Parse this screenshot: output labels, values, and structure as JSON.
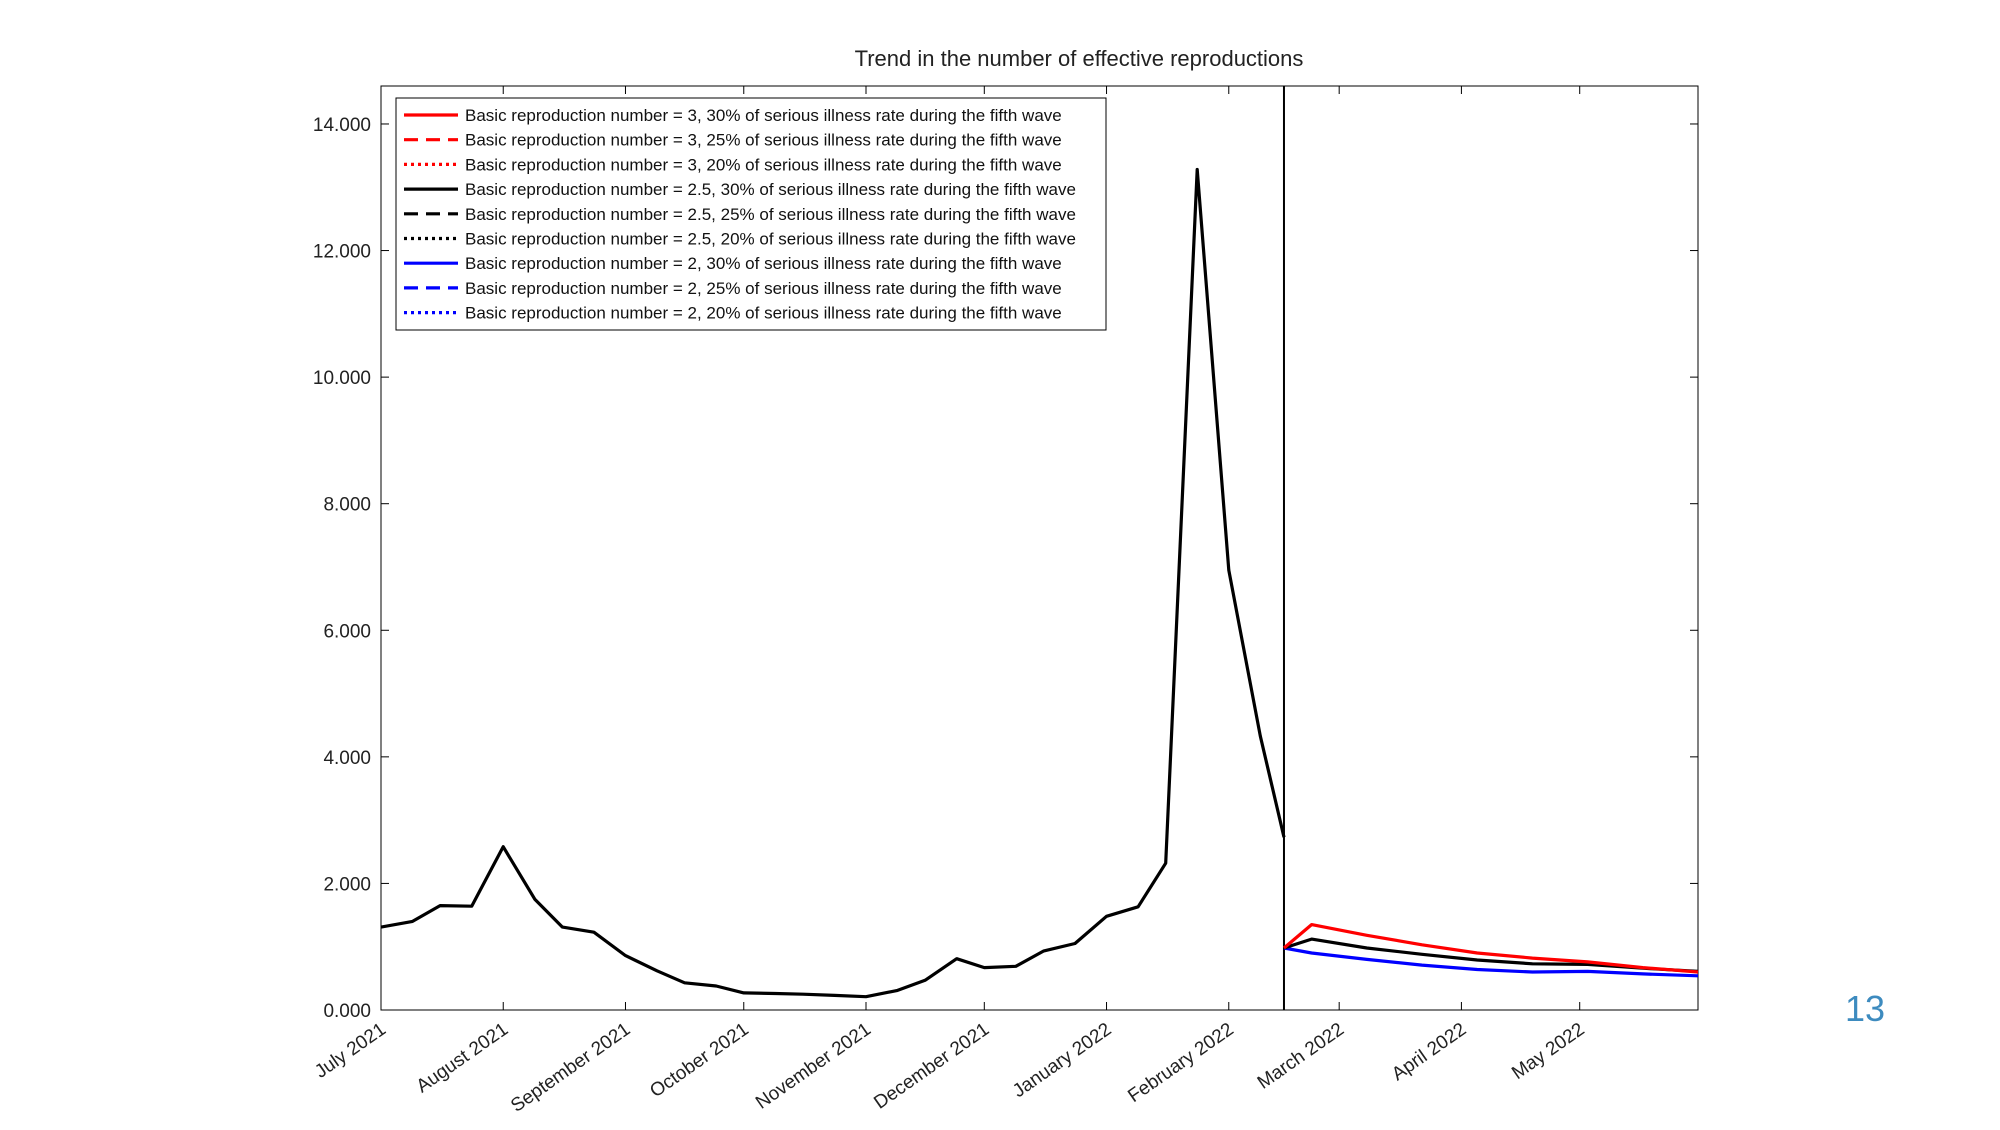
{
  "page_number": "13",
  "chart_data": {
    "type": "line",
    "title": "Trend in the number of effective reproductions",
    "xlabel": "",
    "ylabel": "",
    "ylim": [
      0,
      14.6
    ],
    "yticks": [
      0,
      2,
      4,
      6,
      8,
      10,
      12,
      14
    ],
    "ytick_labels": [
      "0.000",
      "2.000",
      "4.000",
      "6.000",
      "8.000",
      "10.000",
      "12.000",
      "14.000"
    ],
    "x_domain": [
      "2021-07-01",
      "2022-05-31"
    ],
    "xticks": [
      {
        "date": "2021-07-01",
        "label": "July 2021"
      },
      {
        "date": "2021-08-01",
        "label": "August 2021"
      },
      {
        "date": "2021-09-01",
        "label": "September 2021"
      },
      {
        "date": "2021-10-01",
        "label": "October 2021"
      },
      {
        "date": "2021-11-01",
        "label": "November 2021"
      },
      {
        "date": "2021-12-01",
        "label": "December 2021"
      },
      {
        "date": "2022-01-01",
        "label": "January 2022"
      },
      {
        "date": "2022-02-01",
        "label": "February 2022"
      },
      {
        "date": "2022-03-01",
        "label": "March 2022"
      },
      {
        "date": "2022-04-01",
        "label": "April 2022"
      },
      {
        "date": "2022-05-01",
        "label": "May 2022"
      }
    ],
    "vertical_line_date": "2022-02-15",
    "grid": false,
    "legend_position": "top-left",
    "historical": {
      "color": "#000000",
      "dates": [
        "2021-07-01",
        "2021-07-09",
        "2021-07-16",
        "2021-07-24",
        "2021-08-01",
        "2021-08-09",
        "2021-08-16",
        "2021-08-24",
        "2021-09-01",
        "2021-09-09",
        "2021-09-16",
        "2021-09-24",
        "2021-10-01",
        "2021-10-09",
        "2021-10-16",
        "2021-10-24",
        "2021-11-01",
        "2021-11-09",
        "2021-11-16",
        "2021-11-24",
        "2021-12-01",
        "2021-12-09",
        "2021-12-16",
        "2021-12-24",
        "2022-01-01",
        "2022-01-09",
        "2022-01-16",
        "2022-01-24",
        "2022-02-01",
        "2022-02-09",
        "2022-02-15"
      ],
      "values": [
        1.31,
        1.4,
        1.65,
        1.64,
        2.58,
        1.75,
        1.31,
        1.23,
        0.86,
        0.62,
        0.43,
        0.38,
        0.27,
        0.26,
        0.25,
        0.23,
        0.21,
        0.31,
        0.47,
        0.81,
        0.67,
        0.69,
        0.93,
        1.05,
        1.48,
        1.63,
        2.32,
        13.28,
        6.95,
        4.33,
        2.73
      ]
    },
    "series": [
      {
        "name": "Basic reproduction number = 3, 30% of serious illness rate during the fifth wave",
        "color": "#ff0000",
        "dash": "solid",
        "dates": [
          "2022-02-15",
          "2022-02-22",
          "2022-03-08",
          "2022-03-22",
          "2022-04-05",
          "2022-04-19",
          "2022-05-03",
          "2022-05-17",
          "2022-05-31"
        ],
        "values": [
          0.98,
          1.35,
          1.18,
          1.03,
          0.9,
          0.82,
          0.76,
          0.67,
          0.6
        ]
      },
      {
        "name": "Basic reproduction number = 3, 25% of serious illness rate during the fifth wave",
        "color": "#ff0000",
        "dash": "dashed",
        "dates": [],
        "values": []
      },
      {
        "name": "Basic reproduction number = 3, 20% of serious illness rate during the fifth wave",
        "color": "#ff0000",
        "dash": "dotted",
        "dates": [],
        "values": []
      },
      {
        "name": "Basic reproduction number = 2.5, 30% of serious illness rate during the fifth wave",
        "color": "#000000",
        "dash": "solid",
        "dates": [
          "2022-02-15",
          "2022-02-22",
          "2022-03-08",
          "2022-03-22",
          "2022-04-05",
          "2022-04-19",
          "2022-05-03",
          "2022-05-17",
          "2022-05-31"
        ],
        "values": [
          0.98,
          1.12,
          0.98,
          0.88,
          0.79,
          0.73,
          0.72,
          0.66,
          0.61
        ]
      },
      {
        "name": "Basic reproduction number = 2.5, 25% of serious illness rate during the fifth wave",
        "color": "#000000",
        "dash": "dashed",
        "dates": [],
        "values": []
      },
      {
        "name": "Basic reproduction number = 2.5, 20% of serious illness rate during the fifth wave",
        "color": "#000000",
        "dash": "dotted",
        "dates": [],
        "values": []
      },
      {
        "name": "Basic reproduction number = 2, 30% of serious illness rate during the fifth wave",
        "color": "#0000ff",
        "dash": "solid",
        "dates": [
          "2022-02-15",
          "2022-02-22",
          "2022-03-08",
          "2022-03-22",
          "2022-04-05",
          "2022-04-19",
          "2022-05-03",
          "2022-05-17",
          "2022-05-31"
        ],
        "values": [
          0.98,
          0.9,
          0.8,
          0.71,
          0.64,
          0.6,
          0.61,
          0.57,
          0.54
        ]
      },
      {
        "name": "Basic reproduction number = 2, 25% of serious illness rate during the fifth wave",
        "color": "#0000ff",
        "dash": "dashed",
        "dates": [],
        "values": []
      },
      {
        "name": "Basic reproduction number = 2, 20% of serious illness rate during the fifth wave",
        "color": "#0000ff",
        "dash": "dotted",
        "dates": [],
        "values": []
      }
    ]
  }
}
